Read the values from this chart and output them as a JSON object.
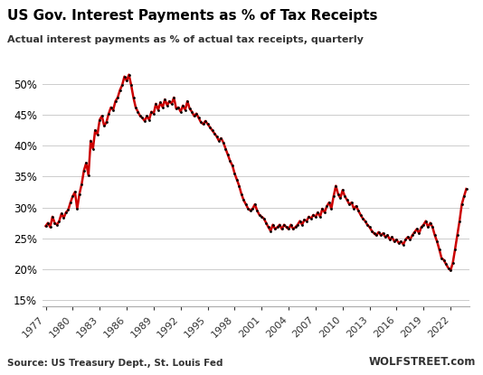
{
  "title": "US Gov. Interest Payments as % of Tax Receipts",
  "subtitle": "Actual interest payments as % of actual tax receipts, quarterly",
  "source_left": "Source: US Treasury Dept., St. Louis Fed",
  "source_right": "WOLFSTREET.com",
  "line_color": "#CC0000",
  "marker_color": "#000000",
  "background_color": "#ffffff",
  "ylim": [
    0.14,
    0.535
  ],
  "yticks": [
    0.15,
    0.2,
    0.25,
    0.3,
    0.35,
    0.4,
    0.45,
    0.5
  ],
  "xlim_left": 1976.6,
  "xlim_right": 2024.1,
  "data": [
    [
      1977.0,
      0.27
    ],
    [
      1977.25,
      0.275
    ],
    [
      1977.5,
      0.268
    ],
    [
      1977.75,
      0.285
    ],
    [
      1978.0,
      0.275
    ],
    [
      1978.25,
      0.272
    ],
    [
      1978.5,
      0.278
    ],
    [
      1978.75,
      0.29
    ],
    [
      1979.0,
      0.283
    ],
    [
      1979.25,
      0.292
    ],
    [
      1979.5,
      0.296
    ],
    [
      1979.75,
      0.308
    ],
    [
      1980.0,
      0.318
    ],
    [
      1980.25,
      0.325
    ],
    [
      1980.5,
      0.298
    ],
    [
      1980.75,
      0.322
    ],
    [
      1981.0,
      0.338
    ],
    [
      1981.25,
      0.36
    ],
    [
      1981.5,
      0.372
    ],
    [
      1981.75,
      0.352
    ],
    [
      1982.0,
      0.408
    ],
    [
      1982.25,
      0.395
    ],
    [
      1982.5,
      0.425
    ],
    [
      1982.75,
      0.418
    ],
    [
      1983.0,
      0.442
    ],
    [
      1983.25,
      0.448
    ],
    [
      1983.5,
      0.432
    ],
    [
      1983.75,
      0.438
    ],
    [
      1984.0,
      0.452
    ],
    [
      1984.25,
      0.462
    ],
    [
      1984.5,
      0.458
    ],
    [
      1984.75,
      0.472
    ],
    [
      1985.0,
      0.478
    ],
    [
      1985.25,
      0.49
    ],
    [
      1985.5,
      0.498
    ],
    [
      1985.75,
      0.512
    ],
    [
      1986.0,
      0.505
    ],
    [
      1986.25,
      0.515
    ],
    [
      1986.5,
      0.498
    ],
    [
      1986.75,
      0.478
    ],
    [
      1987.0,
      0.462
    ],
    [
      1987.25,
      0.455
    ],
    [
      1987.5,
      0.448
    ],
    [
      1987.75,
      0.445
    ],
    [
      1988.0,
      0.44
    ],
    [
      1988.25,
      0.448
    ],
    [
      1988.5,
      0.442
    ],
    [
      1988.75,
      0.455
    ],
    [
      1989.0,
      0.452
    ],
    [
      1989.25,
      0.468
    ],
    [
      1989.5,
      0.458
    ],
    [
      1989.75,
      0.47
    ],
    [
      1990.0,
      0.462
    ],
    [
      1990.25,
      0.475
    ],
    [
      1990.5,
      0.465
    ],
    [
      1990.75,
      0.472
    ],
    [
      1991.0,
      0.468
    ],
    [
      1991.25,
      0.478
    ],
    [
      1991.5,
      0.46
    ],
    [
      1991.75,
      0.462
    ],
    [
      1992.0,
      0.455
    ],
    [
      1992.25,
      0.465
    ],
    [
      1992.5,
      0.458
    ],
    [
      1992.75,
      0.472
    ],
    [
      1993.0,
      0.46
    ],
    [
      1993.25,
      0.455
    ],
    [
      1993.5,
      0.448
    ],
    [
      1993.75,
      0.452
    ],
    [
      1994.0,
      0.445
    ],
    [
      1994.25,
      0.438
    ],
    [
      1994.5,
      0.435
    ],
    [
      1994.75,
      0.44
    ],
    [
      1995.0,
      0.435
    ],
    [
      1995.25,
      0.43
    ],
    [
      1995.5,
      0.425
    ],
    [
      1995.75,
      0.42
    ],
    [
      1996.0,
      0.415
    ],
    [
      1996.25,
      0.408
    ],
    [
      1996.5,
      0.412
    ],
    [
      1996.75,
      0.405
    ],
    [
      1997.0,
      0.395
    ],
    [
      1997.25,
      0.385
    ],
    [
      1997.5,
      0.375
    ],
    [
      1997.75,
      0.368
    ],
    [
      1998.0,
      0.355
    ],
    [
      1998.25,
      0.345
    ],
    [
      1998.5,
      0.335
    ],
    [
      1998.75,
      0.322
    ],
    [
      1999.0,
      0.312
    ],
    [
      1999.25,
      0.305
    ],
    [
      1999.5,
      0.298
    ],
    [
      1999.75,
      0.295
    ],
    [
      2000.0,
      0.298
    ],
    [
      2000.25,
      0.305
    ],
    [
      2000.5,
      0.295
    ],
    [
      2000.75,
      0.288
    ],
    [
      2001.0,
      0.285
    ],
    [
      2001.25,
      0.282
    ],
    [
      2001.5,
      0.275
    ],
    [
      2001.75,
      0.268
    ],
    [
      2002.0,
      0.262
    ],
    [
      2002.25,
      0.272
    ],
    [
      2002.5,
      0.265
    ],
    [
      2002.75,
      0.268
    ],
    [
      2003.0,
      0.272
    ],
    [
      2003.25,
      0.265
    ],
    [
      2003.5,
      0.272
    ],
    [
      2003.75,
      0.268
    ],
    [
      2004.0,
      0.265
    ],
    [
      2004.25,
      0.272
    ],
    [
      2004.5,
      0.265
    ],
    [
      2004.75,
      0.268
    ],
    [
      2005.0,
      0.272
    ],
    [
      2005.25,
      0.278
    ],
    [
      2005.5,
      0.272
    ],
    [
      2005.75,
      0.28
    ],
    [
      2006.0,
      0.278
    ],
    [
      2006.25,
      0.285
    ],
    [
      2006.5,
      0.282
    ],
    [
      2006.75,
      0.288
    ],
    [
      2007.0,
      0.285
    ],
    [
      2007.25,
      0.292
    ],
    [
      2007.5,
      0.285
    ],
    [
      2007.75,
      0.298
    ],
    [
      2008.0,
      0.292
    ],
    [
      2008.25,
      0.302
    ],
    [
      2008.5,
      0.308
    ],
    [
      2008.75,
      0.298
    ],
    [
      2009.0,
      0.318
    ],
    [
      2009.25,
      0.335
    ],
    [
      2009.5,
      0.322
    ],
    [
      2009.75,
      0.315
    ],
    [
      2010.0,
      0.328
    ],
    [
      2010.25,
      0.318
    ],
    [
      2010.5,
      0.312
    ],
    [
      2010.75,
      0.305
    ],
    [
      2011.0,
      0.308
    ],
    [
      2011.25,
      0.298
    ],
    [
      2011.5,
      0.302
    ],
    [
      2011.75,
      0.295
    ],
    [
      2012.0,
      0.288
    ],
    [
      2012.25,
      0.282
    ],
    [
      2012.5,
      0.278
    ],
    [
      2012.75,
      0.272
    ],
    [
      2013.0,
      0.268
    ],
    [
      2013.25,
      0.262
    ],
    [
      2013.5,
      0.258
    ],
    [
      2013.75,
      0.255
    ],
    [
      2014.0,
      0.26
    ],
    [
      2014.25,
      0.255
    ],
    [
      2014.5,
      0.258
    ],
    [
      2014.75,
      0.252
    ],
    [
      2015.0,
      0.255
    ],
    [
      2015.25,
      0.248
    ],
    [
      2015.5,
      0.252
    ],
    [
      2015.75,
      0.245
    ],
    [
      2016.0,
      0.248
    ],
    [
      2016.25,
      0.242
    ],
    [
      2016.5,
      0.245
    ],
    [
      2016.75,
      0.24
    ],
    [
      2017.0,
      0.248
    ],
    [
      2017.25,
      0.252
    ],
    [
      2017.5,
      0.248
    ],
    [
      2017.75,
      0.255
    ],
    [
      2018.0,
      0.26
    ],
    [
      2018.25,
      0.265
    ],
    [
      2018.5,
      0.258
    ],
    [
      2018.75,
      0.268
    ],
    [
      2019.0,
      0.272
    ],
    [
      2019.25,
      0.278
    ],
    [
      2019.5,
      0.268
    ],
    [
      2019.75,
      0.275
    ],
    [
      2020.0,
      0.268
    ],
    [
      2020.25,
      0.255
    ],
    [
      2020.5,
      0.245
    ],
    [
      2020.75,
      0.232
    ],
    [
      2021.0,
      0.218
    ],
    [
      2021.25,
      0.215
    ],
    [
      2021.5,
      0.208
    ],
    [
      2021.75,
      0.202
    ],
    [
      2022.0,
      0.198
    ],
    [
      2022.25,
      0.21
    ],
    [
      2022.5,
      0.232
    ],
    [
      2022.75,
      0.255
    ],
    [
      2023.0,
      0.278
    ],
    [
      2023.25,
      0.305
    ],
    [
      2023.5,
      0.318
    ],
    [
      2023.75,
      0.33
    ]
  ]
}
